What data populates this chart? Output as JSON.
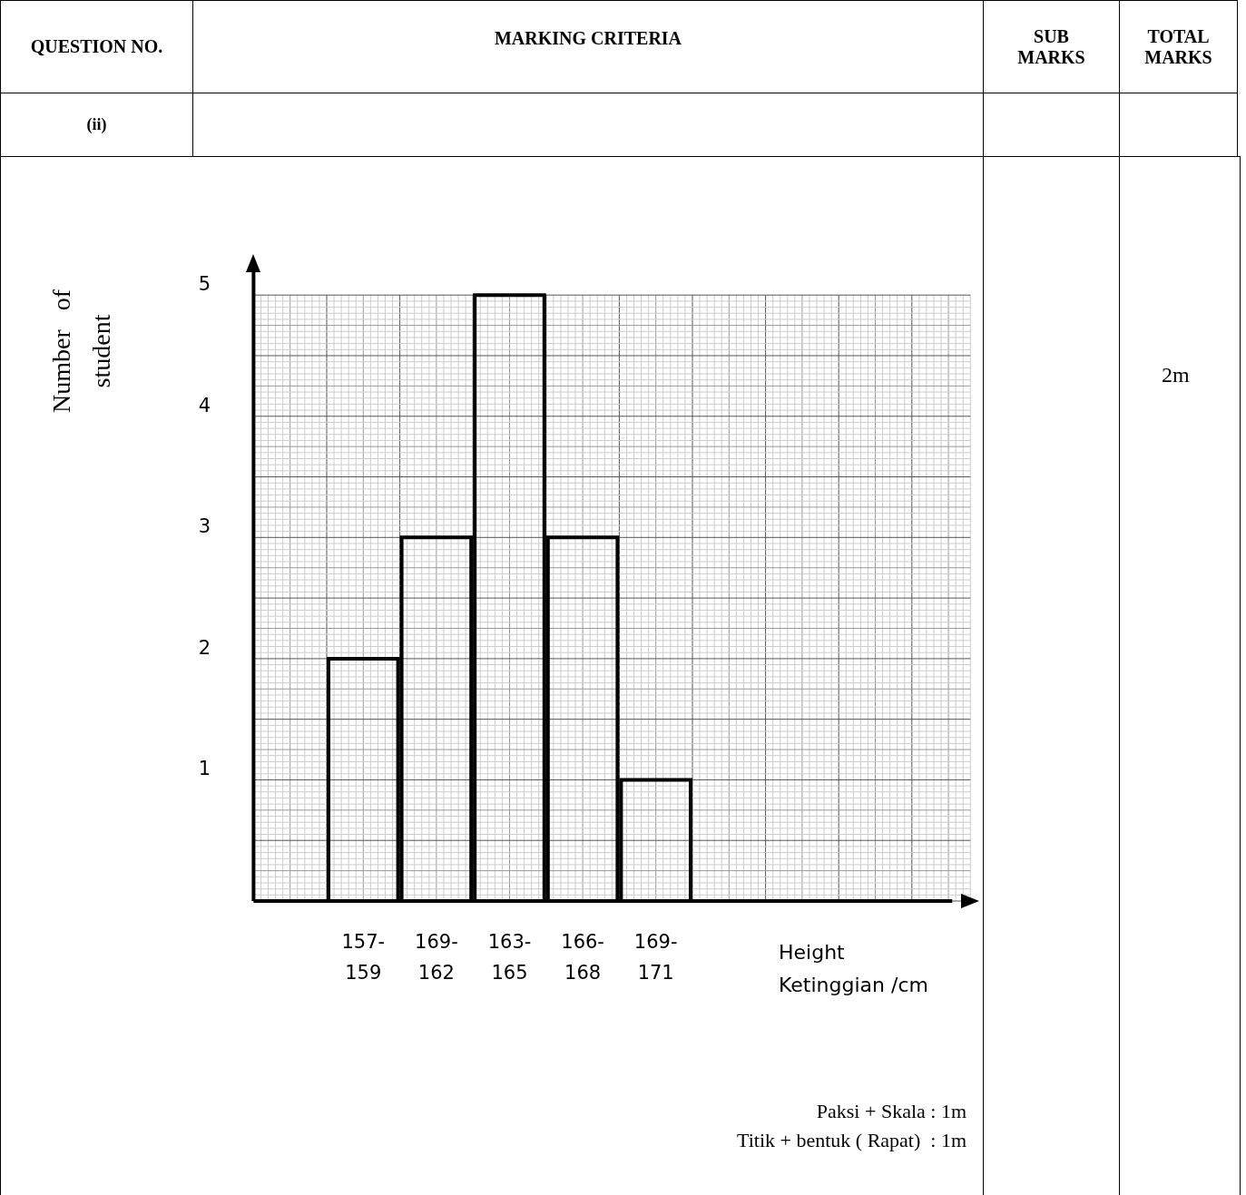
{
  "chart_data": {
    "type": "bar",
    "categories": [
      "157-\n159",
      "169-\n162",
      "163-\n165",
      "166-\n168",
      "169-\n171"
    ],
    "values": [
      2,
      3,
      5,
      3,
      1
    ],
    "color": "#000000",
    "xlabel": "Height\nKetinggian /cm",
    "ylim": [
      0,
      5
    ],
    "yticks": [
      1,
      2,
      3,
      4,
      5
    ],
    "grid": true,
    "annotations": [
      "QUESTION NO.",
      "MARKING CRITERIA",
      "SUB MARKS",
      "TOTAL MARKS",
      "(ii)",
      "2m",
      "Paksi + Skala : 1m",
      "Titik + bentuk ( Rapat)  : 1m",
      "Number   of\nstudent"
    ]
  }
}
